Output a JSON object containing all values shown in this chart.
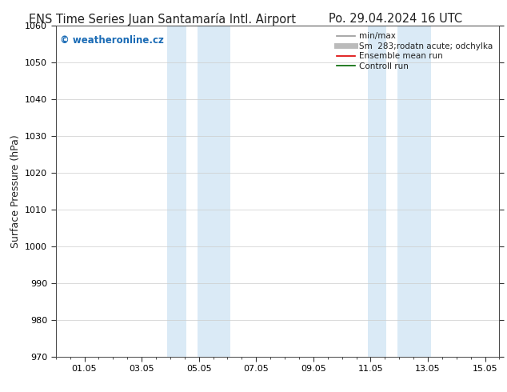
{
  "title_left": "ENS Time Series Juan Santamaría Intl. Airport",
  "title_right": "Po. 29.04.2024 16 UTC",
  "ylabel": "Surface Pressure (hPa)",
  "ylim": [
    970,
    1060
  ],
  "yticks": [
    970,
    980,
    990,
    1000,
    1010,
    1020,
    1030,
    1040,
    1050,
    1060
  ],
  "xtick_labels": [
    "01.05",
    "03.05",
    "05.05",
    "07.05",
    "09.05",
    "11.05",
    "13.05",
    "15.05"
  ],
  "xtick_positions": [
    1,
    3,
    5,
    7,
    9,
    11,
    13,
    15
  ],
  "xlim": [
    0,
    15.5
  ],
  "shaded_bands": [
    {
      "x_start": 3.9,
      "x_end": 4.55
    },
    {
      "x_start": 4.95,
      "x_end": 6.1
    },
    {
      "x_start": 10.9,
      "x_end": 11.55
    },
    {
      "x_start": 11.95,
      "x_end": 13.1
    }
  ],
  "shaded_color": "#daeaf6",
  "watermark_text": "© weatheronline.cz",
  "watermark_color": "#1a6bb5",
  "legend_entries": [
    {
      "label": "min/max",
      "color": "#999999",
      "lw": 1.2,
      "ls": "-"
    },
    {
      "label": "Sm  283;rodatn acute; odchylka",
      "color": "#bbbbbb",
      "lw": 5,
      "ls": "-"
    },
    {
      "label": "Ensemble mean run",
      "color": "#dd0000",
      "lw": 1.2,
      "ls": "-"
    },
    {
      "label": "Controll run",
      "color": "#006600",
      "lw": 1.2,
      "ls": "-"
    }
  ],
  "background_color": "#ffffff",
  "grid_color": "#cccccc",
  "tick_color": "#333333",
  "title_fontsize": 10.5,
  "axis_label_fontsize": 9,
  "tick_fontsize": 8,
  "legend_fontsize": 7.5
}
